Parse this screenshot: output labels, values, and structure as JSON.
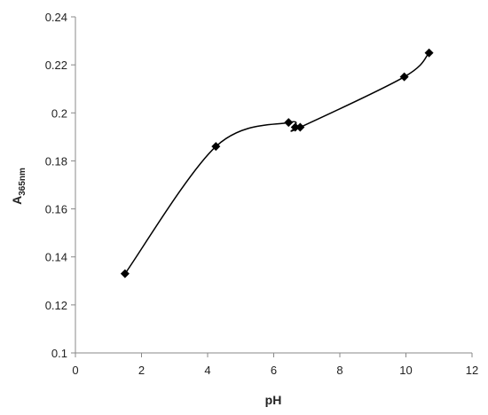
{
  "chart_data": {
    "type": "scatter",
    "smooth_line": true,
    "x_label": "pH",
    "y_label": "A",
    "y_label_subscript": "365nm",
    "series": [
      {
        "color": "#000000",
        "x": [
          1.5,
          4.25,
          6.45,
          6.65,
          6.8,
          9.95,
          10.7
        ],
        "values": [
          0.133,
          0.186,
          0.196,
          0.194,
          0.194,
          0.215,
          0.225
        ]
      }
    ],
    "xlim": [
      0,
      12
    ],
    "xticks": [
      0,
      2,
      4,
      6,
      8,
      10,
      12
    ],
    "ylim": [
      0.1,
      0.24
    ],
    "yticks": [
      0.1,
      0.12,
      0.14,
      0.16,
      0.18,
      0.2,
      0.22,
      0.24
    ],
    "grid": false
  }
}
